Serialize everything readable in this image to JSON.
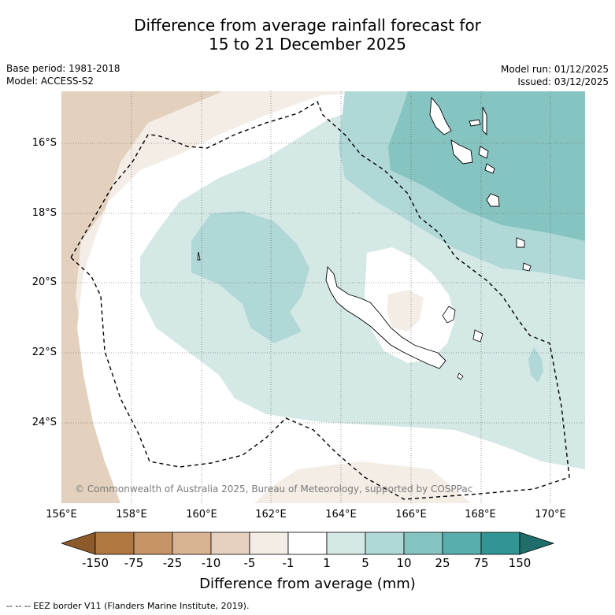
{
  "title": {
    "line1": "Difference from average rainfall forecast for",
    "line2": "15 to 21 December 2025"
  },
  "info": {
    "base_period": "Base period: 1981-2018",
    "model": "Model: ACCESS-S2",
    "model_run": "Model run: 01/12/2025",
    "issued": "Issued: 03/12/2025"
  },
  "axes": {
    "lat_labels": [
      "16°S",
      "18°S",
      "20°S",
      "22°S",
      "24°S"
    ],
    "lon_labels": [
      "156°E",
      "158°E",
      "160°E",
      "162°E",
      "164°E",
      "166°E",
      "168°E",
      "170°E"
    ]
  },
  "copyright": "© Commonwealth of Australia 2025, Bureau of Meteorology, supported by COSPPac",
  "colorbar": {
    "labels": [
      "-150",
      "-75",
      "-25",
      "-10",
      "-5",
      "-1",
      "1",
      "5",
      "10",
      "25",
      "75",
      "150"
    ],
    "colors": [
      "#8c5a2b",
      "#b07840",
      "#c69466",
      "#d8b492",
      "#e6d1be",
      "#f4ede6",
      "#ffffff",
      "#d4e8e6",
      "#afd8d6",
      "#86c4c2",
      "#5aadad",
      "#319693",
      "#1f6e6b"
    ],
    "title": "Difference from average (mm)"
  },
  "footer": "--  --  -- EEZ border V11 (Flanders Marine Institute, 2019)."
}
